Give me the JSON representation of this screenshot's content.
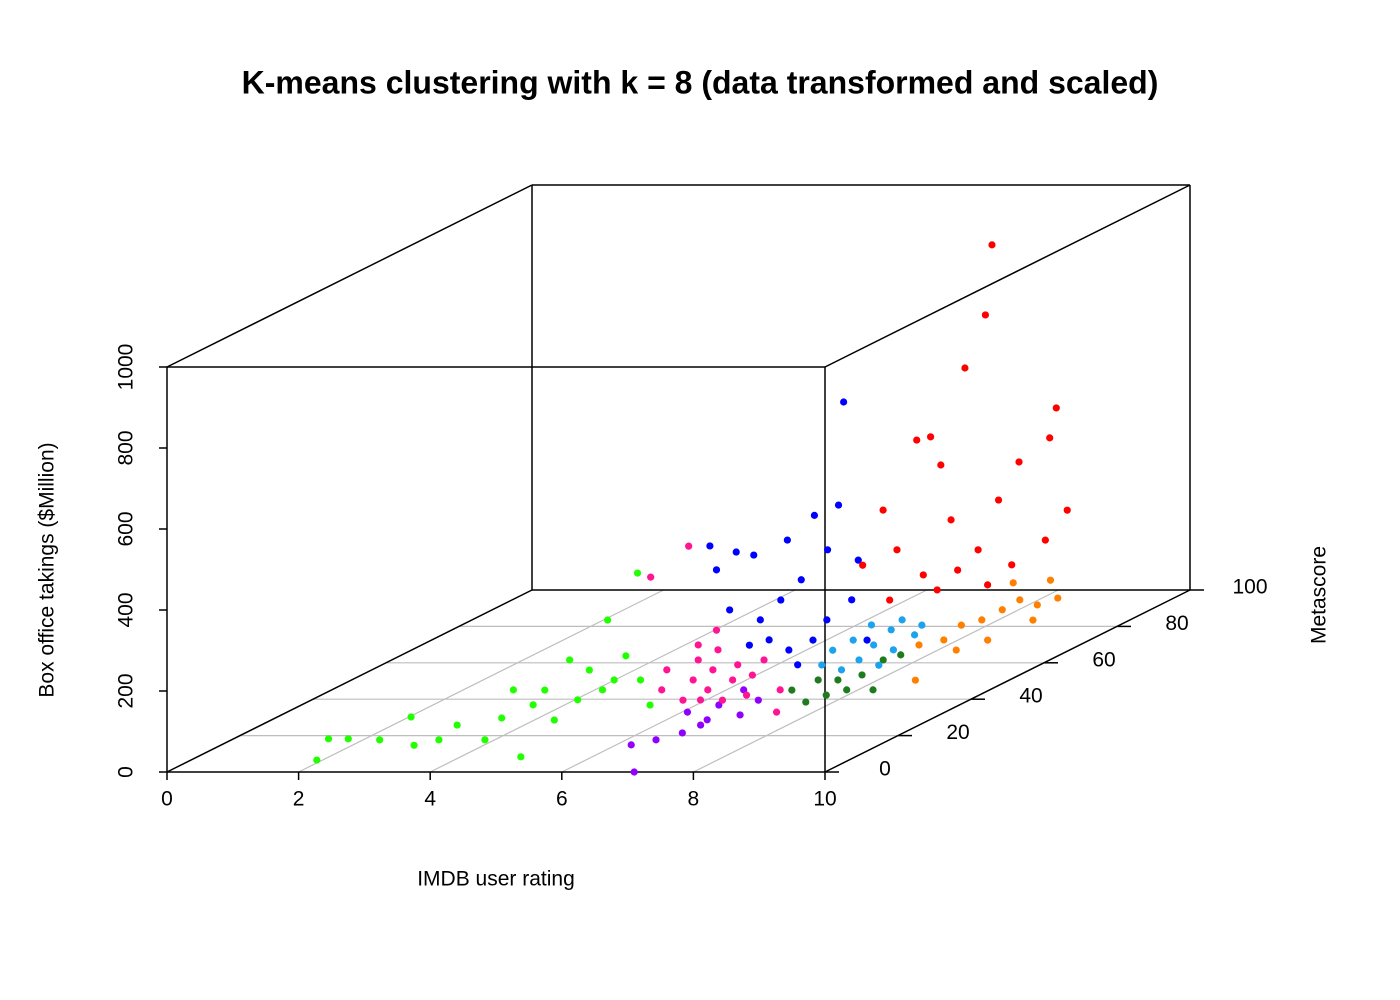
{
  "chart_data": {
    "type": "scatter3d",
    "title": "K-means clustering with k = 8 (data transformed and scaled)",
    "xlabel": "IMDB user rating",
    "ylabel": "Metascore",
    "zlabel": "Box office takings ($Million)",
    "xlim": [
      0,
      10
    ],
    "ylim": [
      0,
      100
    ],
    "zlim": [
      0,
      1000
    ],
    "xticks": [
      0,
      2,
      4,
      6,
      8,
      10
    ],
    "yticks": [
      0,
      20,
      40,
      60,
      80,
      100
    ],
    "zticks": [
      0,
      200,
      400,
      600,
      800,
      1000
    ],
    "grid": true,
    "series": [
      {
        "color": "#8f00ff",
        "x": [
          7.1,
          6.5,
          6.6,
          7.0,
          7.0,
          7.1,
          7.0,
          7.6,
          7.6,
          7.1,
          6.8
        ],
        "y": [
          0,
          10,
          15,
          15,
          20,
          20,
          25,
          20,
          25,
          30,
          20
        ],
        "z": [
          0,
          22,
          12,
          29,
          26,
          39,
          53,
          51,
          65,
          68,
          58
        ]
      },
      {
        "color": "#22ff00",
        "x": [
          2.0,
          1.9,
          2.2,
          2.4,
          2.6,
          3.2,
          3.3,
          3.3,
          4.0,
          3.7,
          3.6,
          5.1,
          3.9,
          3.8,
          4.5,
          3.9,
          4.3,
          4.2,
          4.4,
          4.2,
          4.3,
          4.2,
          4.1,
          4.7,
          5.4
        ],
        "y": [
          5,
          10,
          10,
          15,
          20,
          10,
          15,
          20,
          15,
          25,
          30,
          5,
          30,
          35,
          25,
          40,
          35,
          40,
          40,
          45,
          45,
          50,
          55,
          45,
          35
        ],
        "z": [
          7,
          37,
          37,
          12,
          46,
          21,
          12,
          26,
          12,
          21,
          68,
          15,
          31,
          45,
          16,
          97,
          21,
          72,
          23,
          173,
          25,
          62,
          244,
          25,
          8
        ]
      },
      {
        "color": "#1e7b1e",
        "x": [
          7.0,
          7.6,
          7.8,
          7.7,
          7.9,
          8.0,
          8.1,
          8.4,
          8.0,
          7.4
        ],
        "y": [
          45,
          38,
          40,
          45,
          48,
          52,
          55,
          42,
          42,
          45
        ],
        "z": [
          0,
          2,
          10,
          25,
          24,
          43,
          42,
          14,
          14,
          25
        ]
      },
      {
        "color": "#ff1493",
        "x": [
          5.3,
          5.1,
          5.9,
          5.5,
          5.3,
          6.0,
          6.0,
          5.8,
          5.6,
          5.3,
          6.5,
          6.1,
          5.9,
          6.7,
          6.4,
          6.3,
          7.6,
          7.1,
          4.6,
          4.3,
          5.3
        ],
        "y": [
          40,
          45,
          35,
          45,
          50,
          38,
          40,
          45,
          50,
          55,
          35,
          45,
          50,
          38,
          45,
          50,
          30,
          40,
          60,
          55,
          50
        ],
        "z": [
          23,
          50,
          20,
          25,
          52,
          7,
          23,
          50,
          77,
          103,
          20,
          25,
          40,
          19,
          37,
          52,
          13,
          23,
          288,
          234,
          89
        ]
      },
      {
        "color": "#0000ff",
        "x": [
          6.4,
          6.6,
          6.4,
          6.1,
          5.7,
          5.2,
          5.6,
          5.3,
          5.5,
          5.8,
          6.0,
          6.2,
          6.6,
          6.9,
          6.8,
          6.4,
          6.1,
          6.6,
          6.7,
          5.8,
          7.2,
          6.7
        ],
        "y": [
          70,
          65,
          62,
          60,
          58,
          55,
          55,
          55,
          55,
          58,
          60,
          62,
          62,
          65,
          65,
          55,
          55,
          58,
          60,
          55,
          62,
          52
        ],
        "z": [
          599,
          367,
          355,
          303,
          275,
          311,
          296,
          252,
          153,
          115,
          155,
          196,
          270,
          231,
          133,
          54,
          79,
          65,
          106,
          66,
          47,
          31
        ]
      },
      {
        "color": "#1ca3ec",
        "x": [
          6.9,
          6.9,
          7.1,
          7.3,
          7.3,
          7.4,
          7.4,
          7.7,
          7.7,
          7.6,
          7.2,
          7.6,
          7.1
        ],
        "y": [
          55,
          58,
          60,
          58,
          62,
          65,
          68,
          66,
          68,
          58,
          55,
          62,
          65
        ],
        "z": [
          17,
          40,
          56,
          16,
          35,
          59,
          70,
          42,
          57,
          3,
          5,
          23,
          71
        ]
      },
      {
        "color": "#ff7f00",
        "x": [
          8.6,
          8.1,
          8.2,
          8.3,
          8.5,
          8.7,
          8.8,
          8.9,
          9.1,
          8.7,
          9.1,
          8.7,
          8.5,
          9.0
        ],
        "y": [
          50,
          60,
          65,
          68,
          70,
          72,
          75,
          78,
          80,
          75,
          78,
          68,
          63,
          75
        ],
        "z": [
          2,
          44,
          34,
          57,
          61,
          77,
          88,
          62,
          70,
          130,
          123,
          20,
          18,
          38
        ]
      },
      {
        "color": "#ff0000",
        "x": [
          8.1,
          8.0,
          7.8,
          8.8,
          8.7,
          7.4,
          7.5,
          7.6,
          8.4,
          8.8,
          7.0,
          6.8,
          7.1,
          7.7,
          8.0,
          8.2,
          8.8,
          7.1,
          7.6,
          8.2,
          7.8,
          8.4,
          7.5
        ],
        "y": [
          80,
          80,
          78,
          85,
          85,
          72,
          74,
          75,
          82,
          88,
          70,
          68,
          72,
          76,
          78,
          80,
          82,
          70,
          74,
          77,
          76,
          80,
          72
        ],
        "z": [
          942,
          769,
          647,
          517,
          443,
          496,
          495,
          421,
          397,
          251,
          332,
          205,
          225,
          281,
          198,
          312,
          204,
          110,
          117,
          116,
          157,
          152,
          163
        ]
      }
    ]
  }
}
